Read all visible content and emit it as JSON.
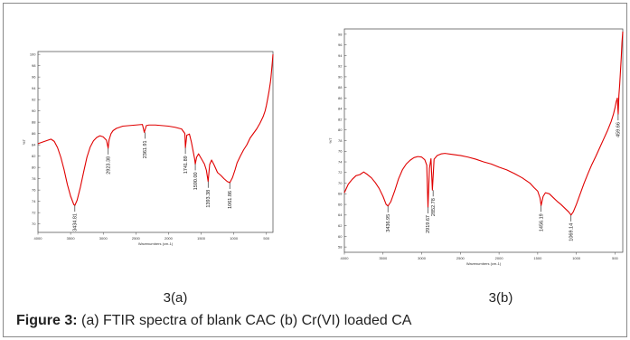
{
  "figure": {
    "caption_prefix": "Figure 3:",
    "caption_text": " (a) FTIR spectra of blank CAC (b) Cr(VI) loaded CA"
  },
  "chart_data": [
    {
      "type": "line",
      "panel_label": "3(a)",
      "title": "",
      "xlabel": "Wavenumbers (cm-1)",
      "ylabel": "%T",
      "xlim": [
        4000,
        400
      ],
      "ylim": [
        68.5,
        100.5
      ],
      "x_ticks": [
        4000,
        3500,
        3000,
        2500,
        2000,
        1500,
        1000,
        500
      ],
      "x_tick_labels": [
        "4000",
        "3500",
        "3000",
        "2500",
        "2000",
        "1500",
        "1000",
        "500"
      ],
      "y_ticks": [
        70,
        72,
        74,
        76,
        78,
        80,
        82,
        84,
        86,
        88,
        90,
        92,
        94,
        96,
        98,
        100
      ],
      "y_tick_labels": [
        "70",
        "72",
        "74",
        "76",
        "78",
        "80",
        "82",
        "84",
        "86",
        "88",
        "90",
        "92",
        "94",
        "96",
        "98",
        "100"
      ],
      "line_color": "#e00000",
      "grid": false,
      "series": [
        {
          "x": [
            4000,
            3900,
            3800,
            3750,
            3700,
            3650,
            3600,
            3550,
            3500,
            3450,
            3434,
            3400,
            3350,
            3300,
            3250,
            3200,
            3150,
            3100,
            3050,
            3000,
            2950,
            2925,
            2910,
            2880,
            2850,
            2800,
            2750,
            2700,
            2600,
            2500,
            2400,
            2371,
            2340,
            2300,
            2200,
            2100,
            2000,
            1900,
            1800,
            1750,
            1741,
            1720,
            1680,
            1650,
            1600,
            1590,
            1570,
            1540,
            1500,
            1450,
            1420,
            1393,
            1370,
            1340,
            1300,
            1250,
            1200,
            1150,
            1100,
            1061,
            1020,
            980,
            950,
            900,
            850,
            800,
            750,
            700,
            650,
            600,
            550,
            520,
            500,
            480,
            460,
            440,
            430,
            420,
            410,
            400
          ],
          "y": [
            84.2,
            84.6,
            85.0,
            84.6,
            83.5,
            81.8,
            79.6,
            77.0,
            74.9,
            73.4,
            73.3,
            74.2,
            76.5,
            79.2,
            81.8,
            83.6,
            84.7,
            85.3,
            85.6,
            85.4,
            84.8,
            83.4,
            84.9,
            86.0,
            86.5,
            86.9,
            87.1,
            87.3,
            87.4,
            87.5,
            87.6,
            86.2,
            87.4,
            87.5,
            87.5,
            87.4,
            87.3,
            87.1,
            86.8,
            86.0,
            83.5,
            85.7,
            85.9,
            84.5,
            81.5,
            80.6,
            81.8,
            82.4,
            81.6,
            80.6,
            79.5,
            77.5,
            80.5,
            81.3,
            80.4,
            79.1,
            78.6,
            78.0,
            77.5,
            77.3,
            78.2,
            79.6,
            80.8,
            82.0,
            83.1,
            84.0,
            85.2,
            86.0,
            86.8,
            87.8,
            89.0,
            90.0,
            91.0,
            92.2,
            93.5,
            95.0,
            96.0,
            97.3,
            98.6,
            100.0
          ]
        }
      ],
      "annotations": [
        {
          "x": 3434.81,
          "y": 73.3,
          "label": "3434.81"
        },
        {
          "x": 2923.38,
          "y": 83.4,
          "label": "2923.38"
        },
        {
          "x": 2361.91,
          "y": 86.2,
          "label": "2361.91"
        },
        {
          "x": 1741.89,
          "y": 83.5,
          "label": "1741.89"
        },
        {
          "x": 1590.0,
          "y": 80.6,
          "label": "1590.00"
        },
        {
          "x": 1393.38,
          "y": 77.5,
          "label": "1393.38"
        },
        {
          "x": 1061.86,
          "y": 77.3,
          "label": "1061.86"
        }
      ]
    },
    {
      "type": "line",
      "panel_label": "3(b)",
      "title": "",
      "xlabel": "Wavenumbers (cm-1)",
      "ylabel": "%T",
      "xlim": [
        4000,
        400
      ],
      "ylim": [
        57,
        99
      ],
      "x_ticks": [
        4000,
        3500,
        3000,
        2500,
        2000,
        1500,
        1000,
        500
      ],
      "x_tick_labels": [
        "4000",
        "3500",
        "3000",
        "2500",
        "2000",
        "1500",
        "1000",
        "500"
      ],
      "y_ticks": [
        58,
        60,
        62,
        64,
        66,
        68,
        70,
        72,
        74,
        76,
        78,
        80,
        82,
        84,
        86,
        88,
        90,
        92,
        94,
        96,
        98
      ],
      "y_tick_labels": [
        "58",
        "60",
        "62",
        "64",
        "66",
        "68",
        "70",
        "72",
        "74",
        "76",
        "78",
        "80",
        "82",
        "84",
        "86",
        "88",
        "90",
        "92",
        "94",
        "96",
        "98"
      ],
      "line_color": "#e00000",
      "grid": false,
      "series": [
        {
          "x": [
            4000,
            3950,
            3900,
            3850,
            3800,
            3750,
            3700,
            3650,
            3600,
            3550,
            3500,
            3460,
            3436,
            3400,
            3350,
            3300,
            3250,
            3200,
            3150,
            3100,
            3050,
            3000,
            2960,
            2935,
            2919,
            2900,
            2880,
            2862,
            2840,
            2800,
            2750,
            2700,
            2600,
            2500,
            2400,
            2300,
            2200,
            2100,
            2000,
            1900,
            1800,
            1700,
            1600,
            1550,
            1500,
            1470,
            1456,
            1430,
            1400,
            1350,
            1300,
            1250,
            1200,
            1150,
            1100,
            1069,
            1040,
            1000,
            950,
            900,
            850,
            800,
            750,
            700,
            650,
            600,
            550,
            520,
            500,
            485,
            470,
            459,
            450,
            440,
            430,
            420,
            410,
            400
          ],
          "y": [
            68.2,
            69.8,
            70.7,
            71.4,
            71.6,
            72.1,
            71.6,
            71.0,
            70.1,
            69.0,
            67.5,
            66.0,
            65.7,
            66.5,
            68.5,
            70.8,
            72.5,
            73.6,
            74.3,
            74.8,
            75.0,
            74.9,
            74.4,
            73.4,
            65.5,
            72.8,
            74.6,
            68.7,
            74.5,
            75.2,
            75.5,
            75.6,
            75.4,
            75.2,
            74.9,
            74.5,
            74.0,
            73.6,
            73.0,
            72.5,
            71.8,
            71.0,
            70.0,
            69.2,
            68.5,
            67.2,
            65.8,
            67.5,
            68.2,
            68.0,
            67.3,
            66.6,
            66.0,
            65.3,
            64.6,
            64.0,
            64.6,
            66.0,
            68.0,
            70.0,
            71.8,
            73.5,
            75.0,
            76.6,
            78.2,
            79.8,
            81.6,
            83.0,
            84.2,
            85.3,
            86.0,
            83.0,
            86.5,
            88.5,
            91.0,
            93.5,
            96.5,
            98.5
          ]
        }
      ],
      "annotations": [
        {
          "x": 3436.95,
          "y": 65.7,
          "label": "3436.95"
        },
        {
          "x": 2919.67,
          "y": 65.5,
          "label": "2919.67"
        },
        {
          "x": 2852.78,
          "y": 68.7,
          "label": "2852.78"
        },
        {
          "x": 1456.19,
          "y": 65.8,
          "label": "1456.19"
        },
        {
          "x": 1069.14,
          "y": 64.0,
          "label": "1069.14"
        },
        {
          "x": 459.66,
          "y": 83.0,
          "label": "459.66"
        }
      ]
    }
  ]
}
